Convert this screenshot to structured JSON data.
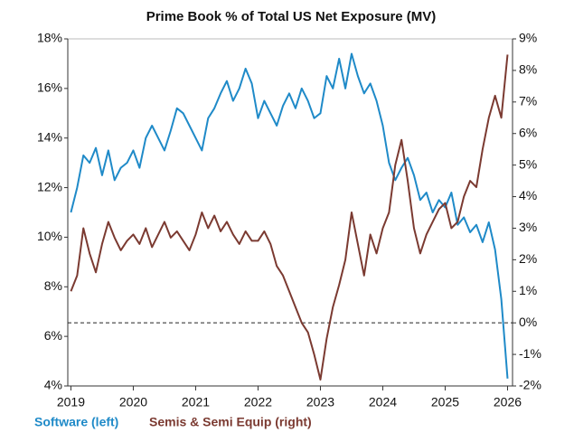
{
  "chart_data": {
    "type": "line",
    "title": "Prime Book % of Total US Net Exposure (MV)",
    "x": [
      2019.0,
      2019.1,
      2019.2,
      2019.3,
      2019.4,
      2019.5,
      2019.6,
      2019.7,
      2019.8,
      2019.9,
      2020.0,
      2020.1,
      2020.2,
      2020.3,
      2020.4,
      2020.5,
      2020.6,
      2020.7,
      2020.8,
      2020.9,
      2021.0,
      2021.1,
      2021.2,
      2021.3,
      2021.4,
      2021.5,
      2021.6,
      2021.7,
      2021.8,
      2021.9,
      2022.0,
      2022.1,
      2022.2,
      2022.3,
      2022.4,
      2022.5,
      2022.6,
      2022.7,
      2022.8,
      2022.9,
      2023.0,
      2023.1,
      2023.2,
      2023.3,
      2023.4,
      2023.5,
      2023.6,
      2023.7,
      2023.8,
      2023.9,
      2024.0,
      2024.1,
      2024.2,
      2024.3,
      2024.4,
      2024.5,
      2024.6,
      2024.7,
      2024.8,
      2024.9,
      2025.0,
      2025.1,
      2025.2,
      2025.3,
      2025.4,
      2025.5,
      2025.6,
      2025.7,
      2025.8,
      2025.9,
      2026.0
    ],
    "xlim": [
      2018.95,
      2026.08
    ],
    "xticks": [
      2019,
      2020,
      2021,
      2022,
      2023,
      2024,
      2025,
      2026
    ],
    "ylim": [
      4,
      18
    ],
    "yticks": [
      {
        "value": 4,
        "label": "4%"
      },
      {
        "value": 6,
        "label": "6%"
      },
      {
        "value": 8,
        "label": "8%"
      },
      {
        "value": 10,
        "label": "10%"
      },
      {
        "value": 12,
        "label": "12%"
      },
      {
        "value": 14,
        "label": "14%"
      },
      {
        "value": 16,
        "label": "16%"
      },
      {
        "value": 18,
        "label": "18%"
      }
    ],
    "y2lim": [
      -2,
      9
    ],
    "y2ticks": [
      {
        "value": -2,
        "label": "-2%"
      },
      {
        "value": -1,
        "label": "-1%"
      },
      {
        "value": 0,
        "label": "0%"
      },
      {
        "value": 1,
        "label": "1%"
      },
      {
        "value": 2,
        "label": "2%"
      },
      {
        "value": 3,
        "label": "3%"
      },
      {
        "value": 4,
        "label": "4%"
      },
      {
        "value": 5,
        "label": "5%"
      },
      {
        "value": 6,
        "label": "6%"
      },
      {
        "value": 7,
        "label": "7%"
      },
      {
        "value": 8,
        "label": "8%"
      },
      {
        "value": 9,
        "label": "9%"
      }
    ],
    "series": [
      {
        "name": "Software (left)",
        "color": "#1f8ac8",
        "axis": "y",
        "values": [
          11.0,
          12.0,
          13.3,
          13.0,
          13.6,
          12.5,
          13.5,
          12.3,
          12.8,
          13.0,
          13.5,
          12.8,
          14.0,
          14.5,
          14.0,
          13.5,
          14.3,
          15.2,
          15.0,
          14.5,
          14.0,
          13.5,
          14.8,
          15.2,
          15.8,
          16.3,
          15.5,
          16.0,
          16.8,
          16.2,
          14.8,
          15.5,
          15.0,
          14.5,
          15.3,
          15.8,
          15.2,
          16.0,
          15.5,
          14.8,
          15.0,
          16.5,
          16.0,
          17.2,
          16.0,
          17.4,
          16.5,
          15.8,
          16.2,
          15.5,
          14.5,
          13.0,
          12.3,
          12.8,
          13.2,
          12.5,
          11.5,
          11.8,
          11.0,
          11.5,
          11.2,
          11.8,
          10.5,
          10.8,
          10.2,
          10.5,
          9.8,
          10.6,
          9.5,
          7.5,
          4.3
        ]
      },
      {
        "name": "Semis & Semi Equip (right)",
        "color": "#7b3a31",
        "axis": "y2",
        "values": [
          1.0,
          1.5,
          3.0,
          2.2,
          1.6,
          2.5,
          3.2,
          2.7,
          2.3,
          2.6,
          2.8,
          2.5,
          3.0,
          2.4,
          2.8,
          3.2,
          2.7,
          2.9,
          2.6,
          2.3,
          2.8,
          3.5,
          3.0,
          3.4,
          2.9,
          3.2,
          2.8,
          2.5,
          2.9,
          2.6,
          2.6,
          2.9,
          2.5,
          1.8,
          1.5,
          1.0,
          0.5,
          0.0,
          -0.3,
          -1.0,
          -1.8,
          -0.5,
          0.5,
          1.2,
          2.0,
          3.5,
          2.5,
          1.5,
          2.8,
          2.2,
          3.0,
          3.5,
          5.0,
          5.8,
          4.5,
          3.0,
          2.2,
          2.8,
          3.2,
          3.6,
          3.8,
          3.0,
          3.2,
          4.0,
          4.5,
          4.3,
          5.5,
          6.5,
          7.2,
          6.5,
          8.5
        ]
      }
    ]
  }
}
